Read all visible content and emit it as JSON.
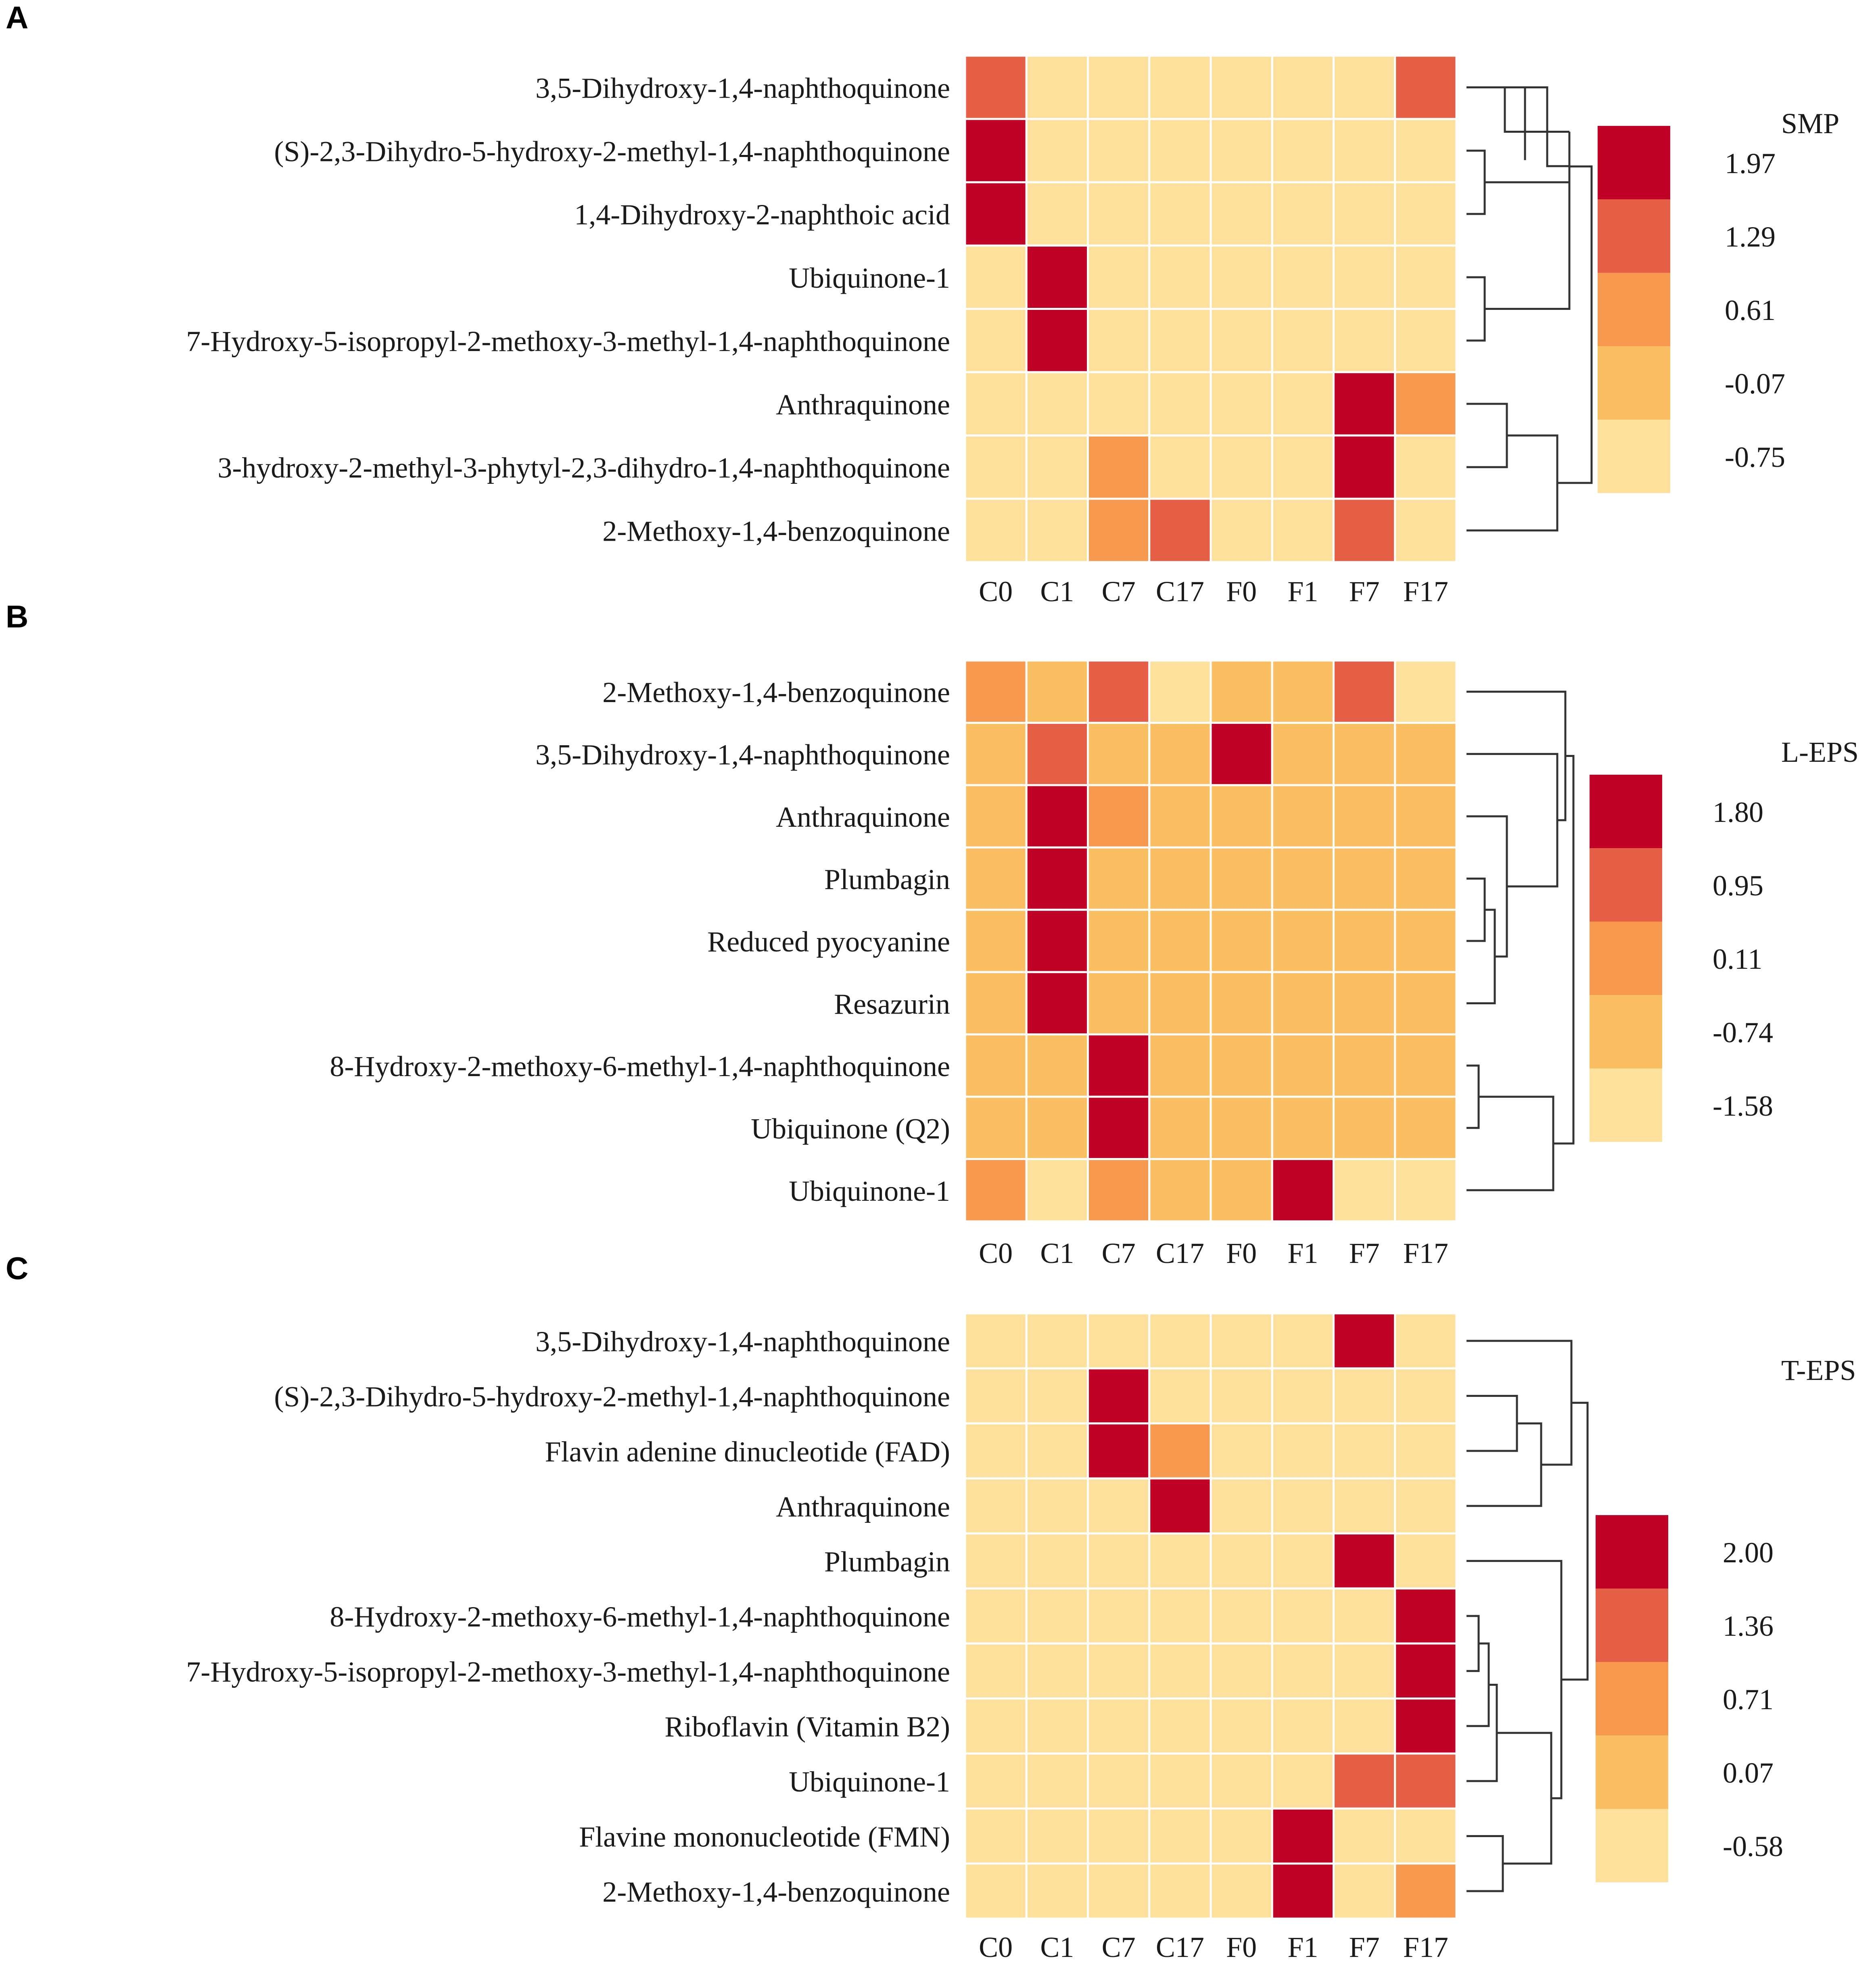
{
  "colors": {
    "c1": "#FCE09C",
    "c2": "#FBBF63",
    "c3": "#F7994F",
    "c4": "#E55F47",
    "c5": "#BF0225",
    "grid": "#ffffff",
    "line": "#333333"
  },
  "chart_data": [
    {
      "type": "heatmap",
      "panel": "A",
      "title": "SMP",
      "columns": [
        "C0",
        "C1",
        "C7",
        "C17",
        "F0",
        "F1",
        "F7",
        "F17"
      ],
      "rows": [
        "3,5-Dihydroxy-1,4-naphthoquinone",
        "(S)-2,3-Dihydro-5-hydroxy-2-methyl-1,4-naphthoquinone",
        "1,4-Dihydroxy-2-naphthoic acid",
        "Ubiquinone-1",
        "7-Hydroxy-5-isopropyl-2-methoxy-3-methyl-1,4-naphthoquinone",
        "Anthraquinone",
        "3-hydroxy-2-methyl-3-phytyl-2,3-dihydro-1,4-naphthoquinone",
        "2-Methoxy-1,4-benzoquinone"
      ],
      "values": [
        [
          1.29,
          -0.75,
          -0.75,
          -0.75,
          -0.75,
          -0.75,
          -0.75,
          1.29
        ],
        [
          1.97,
          -0.75,
          -0.75,
          -0.75,
          -0.75,
          -0.75,
          -0.75,
          -0.75
        ],
        [
          1.97,
          -0.75,
          -0.75,
          -0.75,
          -0.75,
          -0.75,
          -0.75,
          -0.75
        ],
        [
          -0.75,
          1.97,
          -0.75,
          -0.75,
          -0.75,
          -0.75,
          -0.75,
          -0.75
        ],
        [
          -0.75,
          1.97,
          -0.75,
          -0.75,
          -0.75,
          -0.75,
          -0.75,
          -0.75
        ],
        [
          -0.75,
          -0.75,
          -0.75,
          -0.75,
          -0.75,
          -0.75,
          1.97,
          0.61
        ],
        [
          -0.75,
          -0.75,
          0.61,
          -0.75,
          -0.75,
          -0.75,
          1.97,
          -0.75
        ],
        [
          -0.75,
          -0.75,
          0.61,
          1.29,
          -0.75,
          -0.75,
          1.29,
          -0.75
        ]
      ],
      "legend_ticks": [
        "1.97",
        "1.29",
        "0.61",
        "-0.07",
        "-0.75"
      ],
      "legend_levels": [
        1.97,
        1.29,
        0.61,
        -0.07,
        -0.75
      ],
      "dendrogram": {
        "left": [
          [
            0
          ],
          [
            [
              1,
              2
            ],
            [
              3,
              4
            ]
          ]
        ],
        "right": [
          [
            5,
            6
          ],
          7
        ]
      }
    },
    {
      "type": "heatmap",
      "panel": "B",
      "title": "L-EPS",
      "columns": [
        "C0",
        "C1",
        "C7",
        "C17",
        "F0",
        "F1",
        "F7",
        "F17"
      ],
      "rows": [
        "2-Methoxy-1,4-benzoquinone",
        "3,5-Dihydroxy-1,4-naphthoquinone",
        "Anthraquinone",
        "Plumbagin",
        "Reduced pyocyanine",
        "Resazurin",
        "8-Hydroxy-2-methoxy-6-methyl-1,4-naphthoquinone",
        "Ubiquinone (Q2)",
        "Ubiquinone-1"
      ],
      "values": [
        [
          0.11,
          -0.74,
          0.95,
          -1.58,
          -0.74,
          -0.74,
          0.95,
          -1.58
        ],
        [
          -0.74,
          0.95,
          -0.74,
          -0.74,
          1.8,
          -0.74,
          -0.74,
          -0.74
        ],
        [
          -0.74,
          1.8,
          0.11,
          -0.74,
          -0.74,
          -0.74,
          -0.74,
          -0.74
        ],
        [
          -0.74,
          1.8,
          -0.74,
          -0.74,
          -0.74,
          -0.74,
          -0.74,
          -0.74
        ],
        [
          -0.74,
          1.8,
          -0.74,
          -0.74,
          -0.74,
          -0.74,
          -0.74,
          -0.74
        ],
        [
          -0.74,
          1.8,
          -0.74,
          -0.74,
          -0.74,
          -0.74,
          -0.74,
          -0.74
        ],
        [
          -0.74,
          -0.74,
          1.8,
          -0.74,
          -0.74,
          -0.74,
          -0.74,
          -0.74
        ],
        [
          -0.74,
          -0.74,
          1.8,
          -0.74,
          -0.74,
          -0.74,
          -0.74,
          -0.74
        ],
        [
          0.11,
          -1.58,
          0.11,
          -0.74,
          -0.74,
          1.8,
          -1.58,
          -1.58
        ]
      ],
      "legend_ticks": [
        "1.80",
        "0.95",
        "0.11",
        "-0.74",
        "-1.58"
      ],
      "legend_levels": [
        1.8,
        0.95,
        0.11,
        -0.74,
        -1.58
      ],
      "dendrogram": "hierarchical clustering of rows"
    },
    {
      "type": "heatmap",
      "panel": "C",
      "title": "T-EPS",
      "columns": [
        "C0",
        "C1",
        "C7",
        "C17",
        "F0",
        "F1",
        "F7",
        "F17"
      ],
      "rows": [
        "3,5-Dihydroxy-1,4-naphthoquinone",
        "(S)-2,3-Dihydro-5-hydroxy-2-methyl-1,4-naphthoquinone",
        "Flavin adenine dinucleotide (FAD)",
        "Anthraquinone",
        "Plumbagin",
        "8-Hydroxy-2-methoxy-6-methyl-1,4-naphthoquinone",
        "7-Hydroxy-5-isopropyl-2-methoxy-3-methyl-1,4-naphthoquinone",
        "Riboflavin (Vitamin B2)",
        "Ubiquinone-1",
        "Flavine mononucleotide (FMN)",
        "2-Methoxy-1,4-benzoquinone"
      ],
      "values": [
        [
          -0.58,
          -0.58,
          -0.58,
          -0.58,
          -0.58,
          -0.58,
          2.0,
          -0.58
        ],
        [
          -0.58,
          -0.58,
          2.0,
          -0.58,
          -0.58,
          -0.58,
          -0.58,
          -0.58
        ],
        [
          -0.58,
          -0.58,
          2.0,
          0.71,
          -0.58,
          -0.58,
          -0.58,
          -0.58
        ],
        [
          -0.58,
          -0.58,
          -0.58,
          2.0,
          -0.58,
          -0.58,
          -0.58,
          -0.58
        ],
        [
          -0.58,
          -0.58,
          -0.58,
          -0.58,
          -0.58,
          -0.58,
          2.0,
          -0.58
        ],
        [
          -0.58,
          -0.58,
          -0.58,
          -0.58,
          -0.58,
          -0.58,
          -0.58,
          2.0
        ],
        [
          -0.58,
          -0.58,
          -0.58,
          -0.58,
          -0.58,
          -0.58,
          -0.58,
          2.0
        ],
        [
          -0.58,
          -0.58,
          -0.58,
          -0.58,
          -0.58,
          -0.58,
          -0.58,
          2.0
        ],
        [
          -0.58,
          -0.58,
          -0.58,
          -0.58,
          -0.58,
          -0.58,
          1.36,
          1.36
        ],
        [
          -0.58,
          -0.58,
          -0.58,
          -0.58,
          -0.58,
          2.0,
          -0.58,
          -0.58
        ],
        [
          -0.58,
          -0.58,
          -0.58,
          -0.58,
          -0.58,
          2.0,
          -0.58,
          0.71
        ]
      ],
      "legend_ticks": [
        "2.00",
        "1.36",
        "0.71",
        "0.07",
        "-0.58"
      ],
      "legend_levels": [
        2.0,
        1.36,
        0.71,
        0.07,
        -0.58
      ],
      "dendrogram": "hierarchical clustering of rows"
    }
  ]
}
